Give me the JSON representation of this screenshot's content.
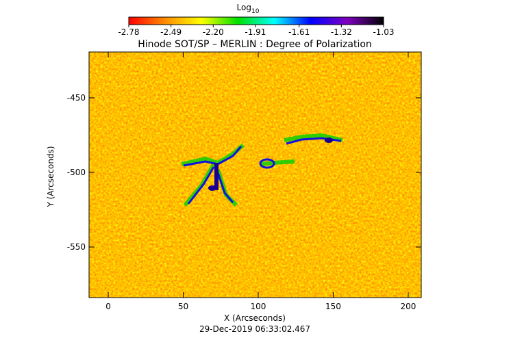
{
  "chart_data": {
    "type": "image",
    "title": "Hinode SOT/SP – MERLIN : Degree of Polarization",
    "colorbar_title": "Log",
    "colorbar_title_sub": "10",
    "colorbar_lim": [
      -2.78,
      -1.03
    ],
    "colorbar_ticks": [
      -2.78,
      -2.49,
      {
        "value": -2.2,
        "label": "-2.20"
      },
      -1.91,
      -1.61,
      -1.32,
      -1.03
    ],
    "colorbar_colors": [
      "#ff0000",
      "#ff8c00",
      "#ffff00",
      "#00e000",
      "#00ffff",
      "#0000ff",
      "#8000c0",
      "#000000"
    ],
    "x_label": "X (Arcseconds)",
    "y_label": "Y (Arcseconds)",
    "xlim": [
      -12.8,
      208.7
    ],
    "ylim": [
      -583.9,
      -419.3
    ],
    "xticks": [
      0,
      50,
      100,
      150,
      200
    ],
    "yticks": [
      -550,
      -500,
      -450
    ],
    "date": "29-Dec-2019 06:33:02.467"
  }
}
